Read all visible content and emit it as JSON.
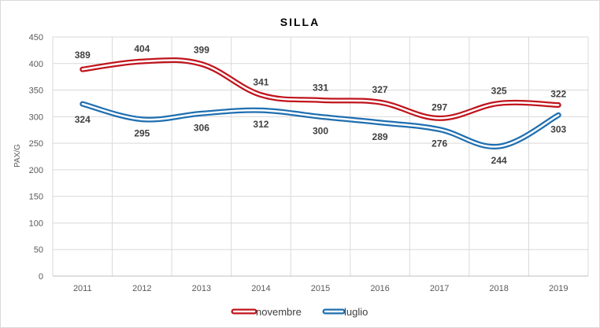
{
  "chart_data": {
    "type": "line",
    "title": "SILLA",
    "xlabel": "",
    "ylabel": "PAX/G",
    "ylim": [
      0,
      450
    ],
    "yticks": [
      0,
      50,
      100,
      150,
      200,
      250,
      300,
      350,
      400,
      450
    ],
    "categories": [
      "2011",
      "2012",
      "2013",
      "2014",
      "2015",
      "2016",
      "2017",
      "2018",
      "2019"
    ],
    "grid": true,
    "legend_position": "bottom",
    "series": [
      {
        "name": "novembre",
        "color": "#c0141c",
        "values": [
          389,
          404,
          399,
          341,
          331,
          327,
          297,
          325,
          322
        ],
        "labels": [
          "389",
          "404",
          "399",
          "341",
          "331",
          "327",
          "297",
          "325",
          "322"
        ]
      },
      {
        "name": "luglio",
        "color": "#1f6fb0",
        "values": [
          324,
          295,
          306,
          312,
          300,
          289,
          276,
          244,
          303
        ],
        "labels": [
          "324",
          "295",
          "306",
          "312",
          "300",
          "289",
          "276",
          "244",
          "303"
        ]
      }
    ]
  }
}
